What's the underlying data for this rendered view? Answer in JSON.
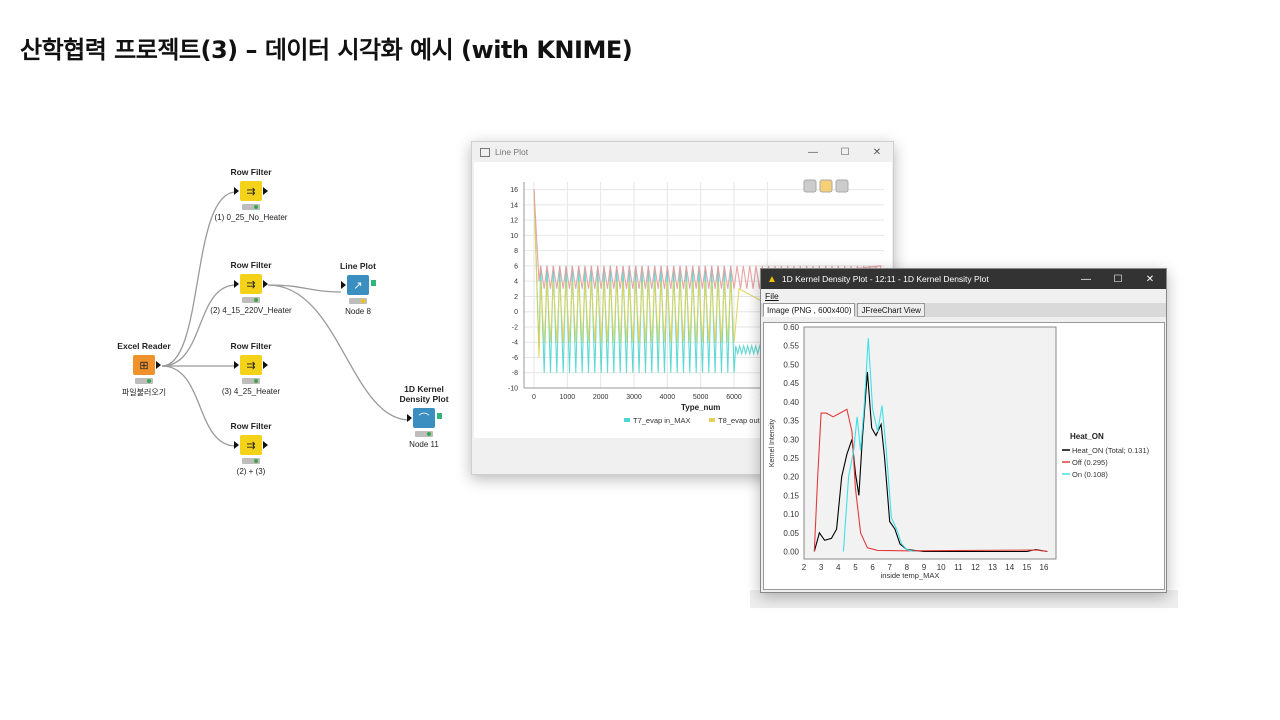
{
  "slide_title": "산학협력 프로젝트(3) – 데이터 시각화 예시 (with KNIME)",
  "workflow": {
    "nodes": [
      {
        "title": "Excel Reader",
        "label": "파일불러오기"
      },
      {
        "title": "Row Filter",
        "label": "(1) 0_25_No_Heater"
      },
      {
        "title": "Row Filter",
        "label": "(2) 4_15_220V_Heater"
      },
      {
        "title": "Row Filter",
        "label": "(3) 4_25_Heater"
      },
      {
        "title": "Row Filter",
        "label": "(2) + (3)"
      },
      {
        "title": "Line Plot",
        "label": "Node 8"
      },
      {
        "title": "1D Kernel Density Plot",
        "label": "Node 11"
      }
    ]
  },
  "line_plot_window": {
    "title": "Line Plot",
    "controls": [
      "—",
      "☐",
      "✕"
    ]
  },
  "kde_window": {
    "title": "1D Kernel Density Plot - 12:11 - 1D Kernel Density Plot",
    "menu_file": "File",
    "tabs": [
      "Image (PNG , 600x400)",
      "JFreeChart View"
    ],
    "controls": [
      "—",
      "☐",
      "✕"
    ]
  },
  "chart_data": [
    {
      "type": "line",
      "xlabel": "Type_num",
      "xlim": [
        -300,
        10500
      ],
      "ylim": [
        -10,
        17
      ],
      "x_ticks": [
        0,
        1000,
        2000,
        3000,
        4000,
        5000,
        6000,
        7000
      ],
      "y_ticks": [
        16,
        14,
        12,
        10,
        8,
        6,
        4,
        2,
        0,
        -2,
        -4,
        -6,
        -8,
        -10
      ],
      "grid": true,
      "legend_position": "bottom",
      "series": [
        {
          "name": "T7_evap in_MAX",
          "color": "#4fd6d0",
          "y_range_cycles": [
            -8,
            6
          ],
          "period": 190,
          "x_end": 5950
        },
        {
          "name": "T8_evap out1",
          "color": "#e3d155",
          "y_range_cycles": [
            -4,
            4
          ],
          "period": 190,
          "x_end": 5950
        },
        {
          "name": "",
          "color": "#e89a9a",
          "y_range_cycles": [
            3,
            6
          ],
          "period": 190,
          "x_end": 10300
        }
      ],
      "legend_entries": [
        "T7_evap in_MAX",
        "T8_evap out1_"
      ]
    },
    {
      "type": "line",
      "xlabel": "inside temp_MAX",
      "ylabel": "Kernel Intensity",
      "xlim": [
        2,
        16.7
      ],
      "ylim": [
        -0.02,
        0.6
      ],
      "x_ticks": [
        2,
        3,
        4,
        5,
        6,
        7,
        8,
        9,
        10,
        11,
        12,
        13,
        14,
        15,
        16
      ],
      "y_ticks": [
        "0.00",
        "0.05",
        "0.10",
        "0.15",
        "0.20",
        "0.25",
        "0.30",
        "0.35",
        "0.40",
        "0.45",
        "0.50",
        "0.55",
        "0.60"
      ],
      "legend_title": "Heat_ON",
      "legend_position": "right",
      "series": [
        {
          "name": "Heat_ON (Total; 0.131)",
          "color": "#000000",
          "points": [
            [
              2.6,
              0
            ],
            [
              2.9,
              0.05
            ],
            [
              3.2,
              0.03
            ],
            [
              3.6,
              0.035
            ],
            [
              3.9,
              0.06
            ],
            [
              4.2,
              0.2
            ],
            [
              4.5,
              0.26
            ],
            [
              4.8,
              0.3
            ],
            [
              5.0,
              0.21
            ],
            [
              5.2,
              0.15
            ],
            [
              5.4,
              0.3
            ],
            [
              5.7,
              0.48
            ],
            [
              5.95,
              0.33
            ],
            [
              6.2,
              0.31
            ],
            [
              6.5,
              0.34
            ],
            [
              6.7,
              0.25
            ],
            [
              7.0,
              0.08
            ],
            [
              7.3,
              0.06
            ],
            [
              7.6,
              0.02
            ],
            [
              8.0,
              0.005
            ],
            [
              9,
              0.0
            ],
            [
              15,
              0.0
            ],
            [
              15.5,
              0.005
            ],
            [
              16.2,
              0.0
            ]
          ]
        },
        {
          "name": "Off (0.295)",
          "color": "#e03c3c",
          "points": [
            [
              2.6,
              0
            ],
            [
              2.8,
              0.2
            ],
            [
              3.0,
              0.37
            ],
            [
              3.3,
              0.37
            ],
            [
              3.7,
              0.36
            ],
            [
              4.1,
              0.37
            ],
            [
              4.5,
              0.38
            ],
            [
              4.8,
              0.32
            ],
            [
              5.0,
              0.17
            ],
            [
              5.3,
              0.05
            ],
            [
              5.7,
              0.01
            ],
            [
              6.3,
              0.003
            ],
            [
              8,
              0.002
            ],
            [
              15.5,
              0.004
            ],
            [
              16.2,
              0.0
            ]
          ]
        },
        {
          "name": "On (0.108)",
          "color": "#3fe1e8",
          "points": [
            [
              4.3,
              0
            ],
            [
              4.6,
              0.2
            ],
            [
              4.9,
              0.27
            ],
            [
              5.1,
              0.36
            ],
            [
              5.3,
              0.27
            ],
            [
              5.5,
              0.38
            ],
            [
              5.75,
              0.57
            ],
            [
              6.0,
              0.38
            ],
            [
              6.3,
              0.32
            ],
            [
              6.55,
              0.39
            ],
            [
              6.8,
              0.27
            ],
            [
              7.1,
              0.09
            ],
            [
              7.4,
              0.06
            ],
            [
              7.7,
              0.02
            ],
            [
              8.0,
              0.005
            ],
            [
              8.4,
              0.0
            ]
          ]
        }
      ]
    }
  ]
}
